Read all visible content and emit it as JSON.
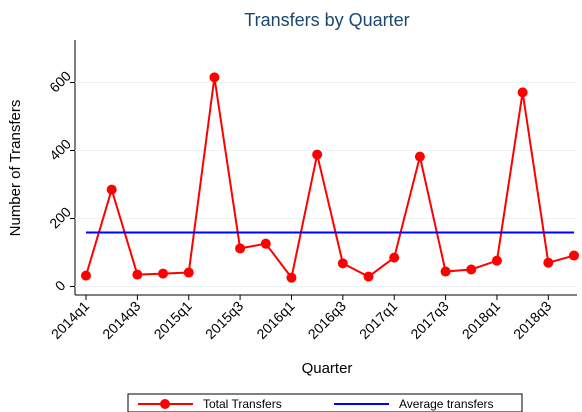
{
  "chart_data": {
    "type": "line",
    "title": "Transfers by Quarter",
    "x_label": "Quarter",
    "y_label": "Number of Transfers",
    "categories": [
      "2014q1",
      null,
      "2014q3",
      null,
      "2015q1",
      null,
      "2015q3",
      null,
      "2016q1",
      null,
      "2016q3",
      null,
      "2017q1",
      null,
      "2017q3",
      null,
      "2018q1",
      null,
      "2018q3",
      null
    ],
    "series": [
      {
        "name": "Total Transfers",
        "color": "#ff0000",
        "markers": true,
        "values": [
          32,
          285,
          35,
          38,
          41,
          615,
          112,
          126,
          26,
          388,
          68,
          29,
          85,
          382,
          44,
          50,
          76,
          571,
          70,
          91
        ]
      },
      {
        "name": "Average transfers",
        "color": "#0000ff",
        "markers": false,
        "values": [
          159,
          159,
          159,
          159,
          159,
          159,
          159,
          159,
          159,
          159,
          159,
          159,
          159,
          159,
          159,
          159,
          159,
          159,
          159,
          159
        ]
      }
    ],
    "ylim": [
      -25,
      725
    ],
    "yticks": [
      0,
      200,
      400,
      600
    ],
    "grid": true
  }
}
